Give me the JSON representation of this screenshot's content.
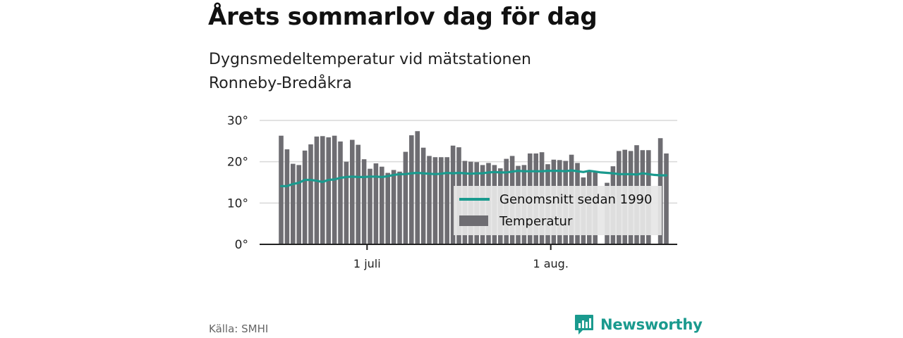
{
  "title": "Årets sommarlov dag för dag",
  "subtitle": "Dygnsmedeltemperatur vid mätstationen Ronneby-Bredåkra",
  "source": "Källa: SMHI",
  "brand": {
    "name": "Newsworthy",
    "color": "#1a9a8e"
  },
  "colors": {
    "bar": "#6e6d72",
    "line": "#1a9a8e",
    "grid": "#d9d9d9",
    "axis": "#222222",
    "legend_bg": "#e6e6e6"
  },
  "chart_data": {
    "type": "bar",
    "ylim": [
      0,
      30
    ],
    "ytick_values": [
      0,
      10,
      20,
      30
    ],
    "ytick_labels": [
      "0°",
      "10°",
      "20°",
      "30°"
    ],
    "xtick_labels": [
      {
        "label": "1 juli",
        "index": 15
      },
      {
        "label": "1 aug.",
        "index": 46
      }
    ],
    "grid": true,
    "legend_position": "bottom-right",
    "series": [
      {
        "name": "Temperatur",
        "kind": "bar",
        "values": [
          26.3,
          23.0,
          19.5,
          19.2,
          22.7,
          24.2,
          26.1,
          26.2,
          25.9,
          26.3,
          24.9,
          20.0,
          25.3,
          24.1,
          20.6,
          18.3,
          19.6,
          18.8,
          17.3,
          18.0,
          17.6,
          22.4,
          26.4,
          27.4,
          23.4,
          21.4,
          21.1,
          21.1,
          21.1,
          23.9,
          23.5,
          20.2,
          20.0,
          19.9,
          19.2,
          19.7,
          19.2,
          18.4,
          20.7,
          21.4,
          19.0,
          19.2,
          22.0,
          22.0,
          22.3,
          19.4,
          20.5,
          20.4,
          20.2,
          21.7,
          19.7,
          16.2,
          17.6,
          17.4,
          null,
          14.9,
          18.9,
          22.6,
          22.9,
          22.6,
          24.0,
          22.8,
          22.8,
          null,
          25.7,
          22.0
        ]
      },
      {
        "name": "Genomsnitt sedan 1990",
        "kind": "line",
        "values": [
          14.1,
          14.1,
          14.6,
          14.9,
          15.6,
          15.6,
          15.4,
          15.1,
          15.6,
          15.7,
          16.1,
          16.3,
          16.4,
          16.3,
          16.3,
          16.4,
          16.4,
          16.3,
          16.5,
          16.8,
          17.0,
          17.0,
          17.2,
          17.3,
          17.2,
          17.1,
          17.0,
          17.1,
          17.3,
          17.2,
          17.3,
          17.2,
          17.1,
          17.2,
          17.2,
          17.4,
          17.5,
          17.4,
          17.4,
          17.6,
          17.8,
          17.7,
          17.7,
          17.7,
          17.7,
          17.8,
          17.8,
          17.8,
          17.7,
          17.9,
          17.7,
          17.5,
          17.8,
          17.6,
          17.4,
          17.3,
          17.2,
          17.0,
          17.0,
          17.0,
          16.9,
          17.2,
          17.0,
          16.8,
          16.7,
          16.7
        ]
      }
    ]
  }
}
